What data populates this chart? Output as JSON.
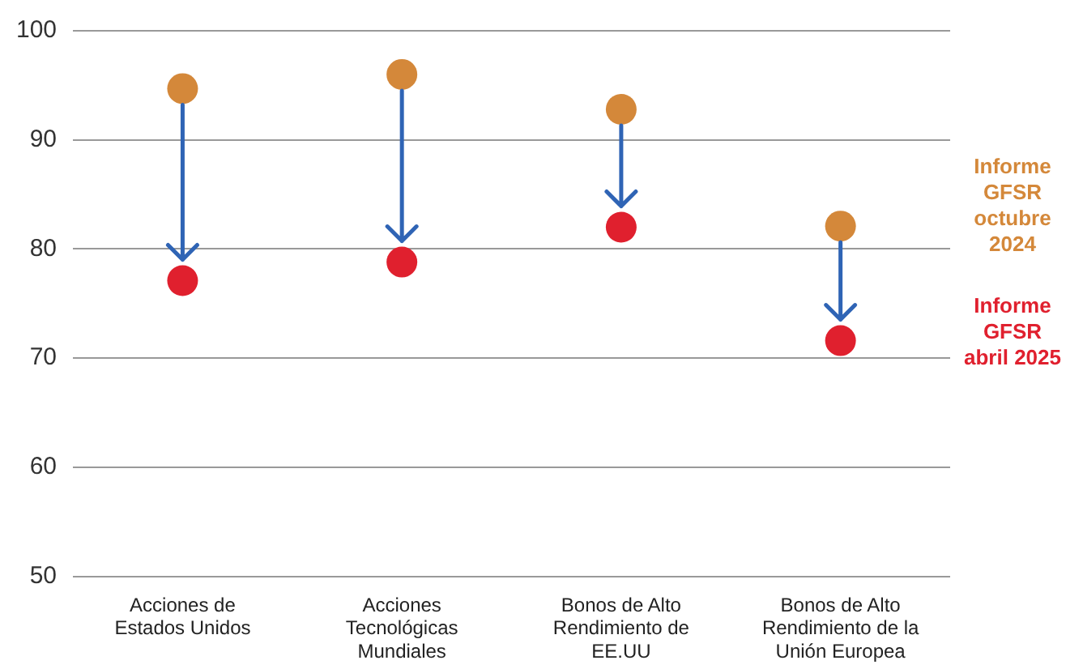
{
  "chart_data": {
    "type": "scatter",
    "categories": [
      "Acciones de Estados Unidos",
      "Acciones Tecnológicas Mundiales",
      "Bonos de Alto Rendimiento de EE.UU",
      "Bonos de Alto Rendimiento de la Unión Europea"
    ],
    "series": [
      {
        "name": "Informe GFSR octubre 2024",
        "color": "#d4883a",
        "values": [
          94.7,
          96.0,
          92.8,
          82.1
        ]
      },
      {
        "name": "Informe GFSR abril 2025",
        "color": "#e0202e",
        "values": [
          77.1,
          78.8,
          82.0,
          71.6
        ]
      }
    ],
    "ylim": [
      50,
      100
    ],
    "yticks": [
      50,
      60,
      70,
      80,
      90,
      100
    ],
    "grid": "y",
    "legend": "right",
    "marker": "circle"
  }
}
